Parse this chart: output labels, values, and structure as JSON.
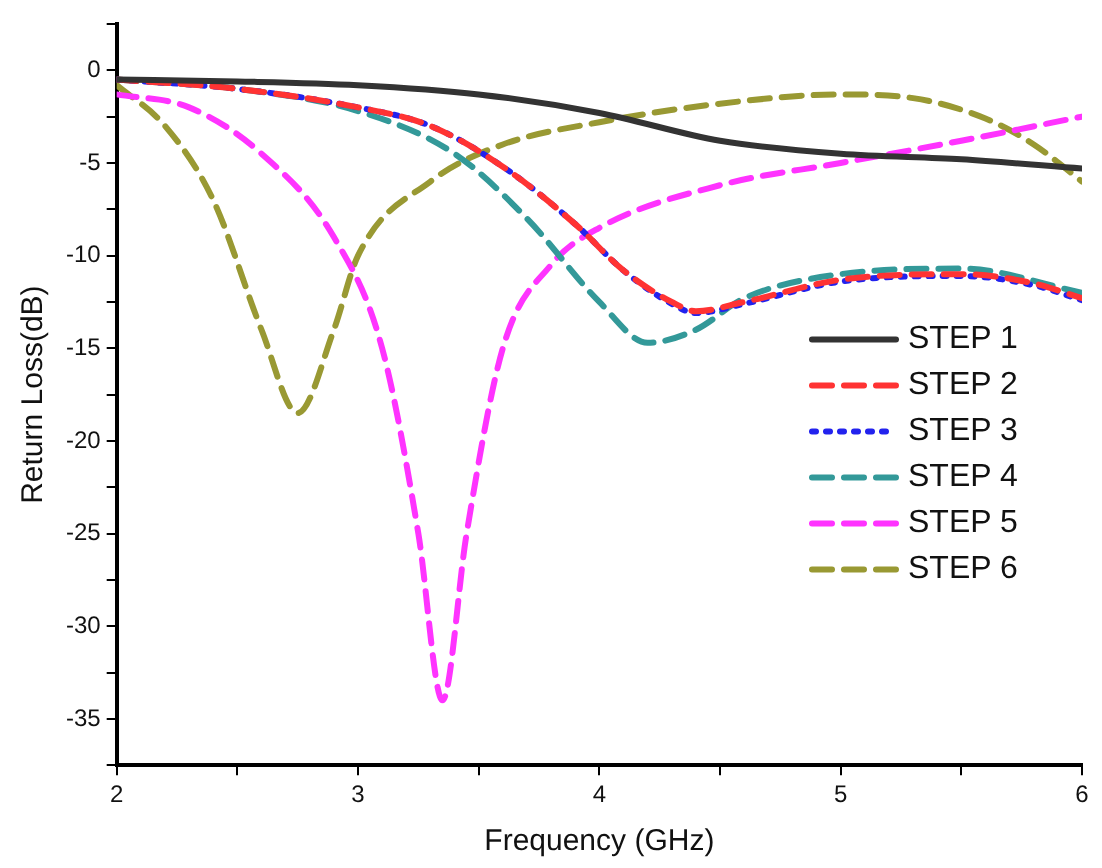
{
  "chart_data": {
    "type": "line",
    "xlabel": "Frequency (GHz)",
    "ylabel": "Return Loss(dB)",
    "xlim": [
      2,
      6
    ],
    "xticks": [
      2,
      {
        "value": 2.5,
        "label": null
      },
      3,
      {
        "value": 3.5,
        "label": null
      },
      4,
      {
        "value": 4.5,
        "label": null
      },
      5,
      {
        "value": 5.5,
        "label": null
      },
      6
    ],
    "ylim": [
      -37.5,
      2.5
    ],
    "yticks": [
      {
        "value": 2.5,
        "label": null
      },
      0,
      {
        "value": -2.5,
        "label": null
      },
      -5,
      {
        "value": -7.5,
        "label": null
      },
      -10,
      {
        "value": -12.5,
        "label": null
      },
      -15,
      {
        "value": -17.5,
        "label": null
      },
      -20,
      {
        "value": -22.5,
        "label": null
      },
      -25,
      {
        "value": -27.5,
        "label": null
      },
      -30,
      {
        "value": -32.5,
        "label": null
      },
      -35,
      {
        "value": -37.5,
        "label": null
      }
    ],
    "grid": false,
    "legend": "right",
    "marker": "none",
    "series": [
      {
        "name": "STEP 1",
        "color": "#333333",
        "line_style": "solid",
        "x": [
          2,
          2.5,
          3,
          3.5,
          4,
          4.5,
          5,
          5.5,
          6
        ],
        "values": [
          -0.5,
          -0.6,
          -0.8,
          -1.3,
          -2.3,
          -3.8,
          -4.5,
          -4.8,
          -5.3
        ]
      },
      {
        "name": "STEP 2",
        "color": "#ff3333",
        "line_style": "dashed",
        "x": [
          2,
          2.5,
          3,
          3.3,
          3.6,
          3.9,
          4.1,
          4.3,
          4.4,
          4.6,
          5,
          5.5,
          5.8,
          6
        ],
        "values": [
          -0.5,
          -1.0,
          -2.0,
          -3.0,
          -5.2,
          -8.3,
          -10.8,
          -12.5,
          -13,
          -12.5,
          -11.3,
          -11,
          -11.5,
          -12.3
        ]
      },
      {
        "name": "STEP 3",
        "color": "#2222ee",
        "line_style": "dotted",
        "x": [
          2,
          2.5,
          3,
          3.3,
          3.6,
          3.9,
          4.1,
          4.3,
          4.4,
          4.6,
          5,
          5.5,
          5.8,
          6
        ],
        "values": [
          -0.5,
          -1.0,
          -2.0,
          -3.0,
          -5.2,
          -8.3,
          -10.8,
          -12.6,
          -13.1,
          -12.6,
          -11.4,
          -11.1,
          -11.6,
          -12.4
        ]
      },
      {
        "name": "STEP 4",
        "color": "#339999",
        "line_style": "dashed",
        "x": [
          2,
          2.5,
          3,
          3.4,
          3.7,
          4,
          4.2,
          4.4,
          4.6,
          5,
          5.5,
          6
        ],
        "values": [
          -0.5,
          -1.0,
          -2.2,
          -4.5,
          -8,
          -12.5,
          -14.7,
          -14,
          -12.3,
          -11,
          -10.7,
          -12
        ]
      },
      {
        "name": "STEP 5",
        "color": "#ff33ff",
        "line_style": "dashed",
        "x": [
          2,
          2.3,
          2.6,
          2.9,
          3.1,
          3.25,
          3.35,
          3.45,
          3.6,
          3.8,
          4,
          4.5,
          5,
          5.5,
          6
        ],
        "values": [
          -1.3,
          -2,
          -4.5,
          -9,
          -15,
          -25,
          -34,
          -25,
          -15,
          -10.5,
          -8.5,
          -6.2,
          -5,
          -3.8,
          -2.5
        ]
      },
      {
        "name": "STEP 6",
        "color": "#999933",
        "line_style": "dashed",
        "x": [
          2,
          2.2,
          2.4,
          2.6,
          2.75,
          2.9,
          3,
          3.3,
          3.6,
          4,
          4.5,
          5,
          5.3,
          5.6,
          5.8,
          6
        ],
        "values": [
          -0.8,
          -3,
          -7,
          -14,
          -18.5,
          -14,
          -10,
          -6,
          -4,
          -2.8,
          -1.8,
          -1.3,
          -1.5,
          -2.6,
          -4,
          -6
        ]
      }
    ]
  }
}
